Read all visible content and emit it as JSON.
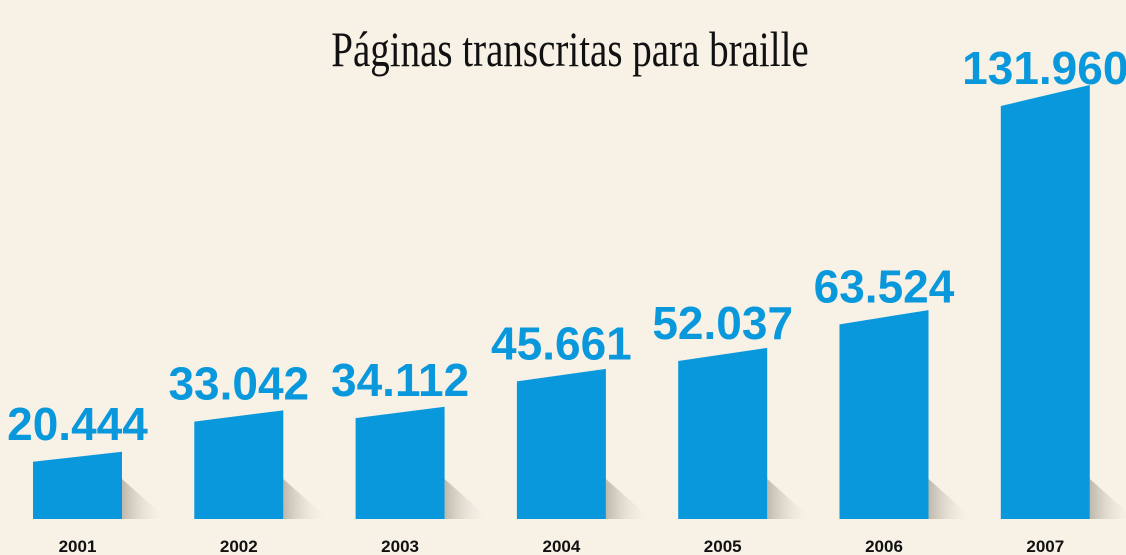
{
  "chart_data": {
    "type": "bar",
    "title": "Páginas transcritas para braille",
    "categories": [
      "2001",
      "2002",
      "2003",
      "2004",
      "2005",
      "2006",
      "2007"
    ],
    "values": [
      20444,
      33042,
      34112,
      45661,
      52037,
      63524,
      131960
    ],
    "value_labels": [
      "20.444",
      "33.042",
      "34.112",
      "45.661",
      "52.037",
      "63.524",
      "131.960"
    ],
    "color": "#0a98dc"
  }
}
